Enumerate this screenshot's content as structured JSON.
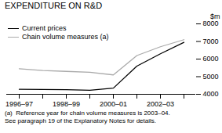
{
  "chart_data": {
    "type": "line",
    "title": "EXPENDITURE ON R&D",
    "ylabel": "$m",
    "categories": [
      "1996–97",
      null,
      "1998–99",
      null,
      "2000–01",
      null,
      "2002–03",
      null
    ],
    "series": [
      {
        "name": "Current prices",
        "color": "#000000",
        "values": [
          4280,
          4270,
          4260,
          4230,
          4350,
          5600,
          6300,
          6950
        ]
      },
      {
        "name": "Chain volume measures (a)",
        "color": "#aaaaaa",
        "values": [
          5450,
          5350,
          5300,
          5250,
          5100,
          6200,
          6700,
          7100
        ]
      }
    ],
    "ylim": [
      4000,
      8000
    ],
    "yticks": [
      4000,
      5000,
      6000,
      7000,
      8000
    ],
    "grid": false,
    "legend": "upper left",
    "footnote": "(a)  Reference year for chain volume measures is 2003–04.\nSee paragraph 19 of the Explanatory Notes for details."
  }
}
